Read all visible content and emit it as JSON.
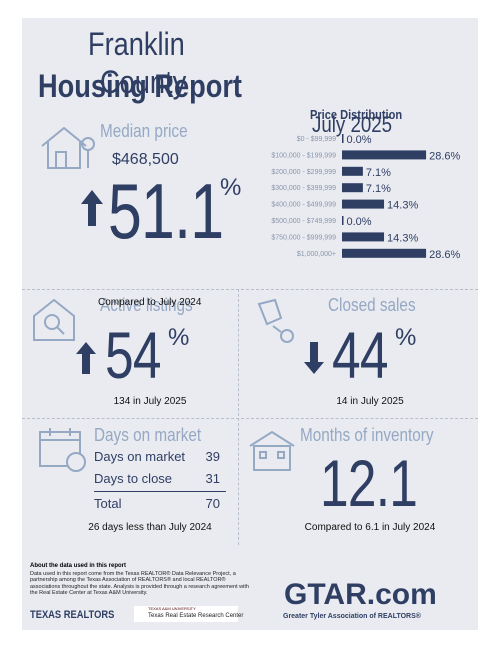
{
  "header": {
    "city": "Franklin",
    "county": "County",
    "title": "Housing Report",
    "period": "July 2025"
  },
  "price_distribution": {
    "title": "Price Distribution",
    "categories": [
      "$0 - $99,999",
      "$100,000 - $199,999",
      "$200,000 - $299,999",
      "$300,000 - $399,999",
      "$400,000 - $499,999",
      "$500,000 - $749,999",
      "$750,000 - $999,999",
      "$1,000,000+"
    ],
    "values": [
      0.0,
      28.6,
      7.1,
      7.1,
      14.3,
      0.0,
      14.3,
      28.6
    ],
    "value_labels": [
      "0.0%",
      "28.6%",
      "7.1%",
      "7.1%",
      "14.3%",
      "0.0%",
      "14.3%",
      "28.6%"
    ],
    "color": "#2f3e63"
  },
  "median_price": {
    "label": "Median price",
    "value": "$468,500",
    "change": "51.1",
    "unit": "%",
    "note": "Compared to July 2024"
  },
  "active_listings": {
    "label": "Active listings",
    "change": "54",
    "unit": "%",
    "note": "134 in July 2025"
  },
  "closed_sales": {
    "label": "Closed sales",
    "change": "44",
    "unit": "%",
    "note": "14 in July 2025"
  },
  "days_on_market": {
    "label": "Days on market",
    "rows": [
      [
        "Days on market",
        "39"
      ],
      [
        "Days to close",
        "31"
      ]
    ],
    "total": [
      "Total",
      "70"
    ],
    "note": "26 days less than July 2024"
  },
  "months_inventory": {
    "label": "Months of inventory",
    "value": "12.1",
    "note": "Compared to 6.1 in July 2024"
  },
  "footer": {
    "about_title": "About the data used in this report",
    "about_text": "Data used in this report come from the Texas REALTOR® Data Relevance Project, a partnership among the Texas Association of REALTORS® and local REALTOR® associations throughout the state. Analysis is provided through a research agreement with the Real Estate Center at Texas A&M University.",
    "logo_left": "TEXAS REALTORS",
    "logo_mid_top": "TEXAS A&M UNIVERSITY",
    "logo_mid": "Texas Real Estate Research Center",
    "logo_right": "GTAR.com",
    "logo_right_sub": "Greater Tyler Association of REALTORS®"
  }
}
